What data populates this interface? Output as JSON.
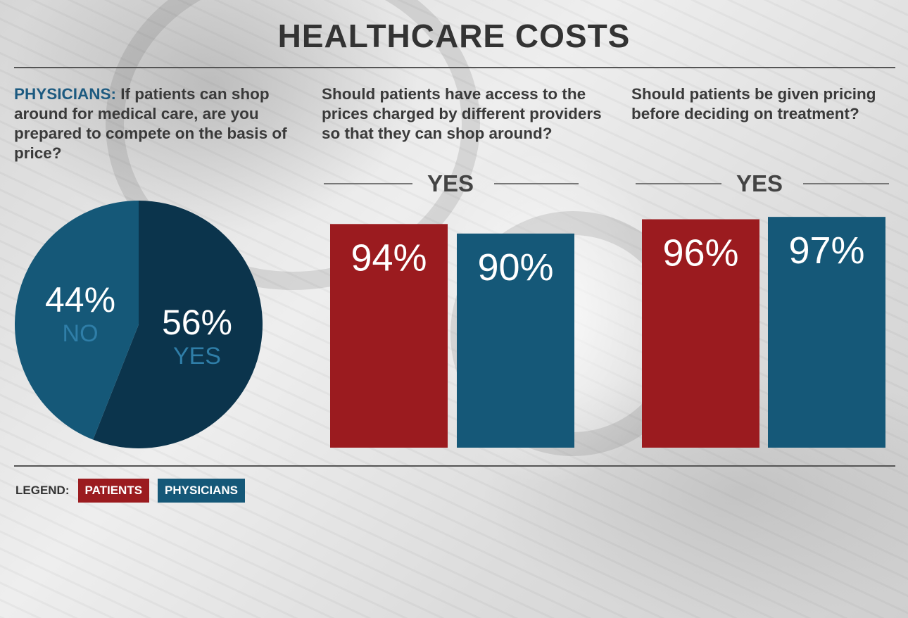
{
  "title": "HEALTHCARE COSTS",
  "colors": {
    "patients": "#9b1b1f",
    "physicians": "#155878",
    "pie_yes": "#0b344c",
    "pie_no": "#155878",
    "pie_cat_text": "#2f7ea8"
  },
  "questions": [
    {
      "lead": "PHYSICIANS:",
      "text": " If patients can shop around for medical care, are you prepared to compete on the basis of price?"
    },
    {
      "lead": "",
      "text": "Should patients have access to the prices charged by different providers so that they can shop around?"
    },
    {
      "lead": "",
      "text": "Should patients be given pricing before deciding on treatment?"
    }
  ],
  "yes_headers": [
    "YES",
    "YES"
  ],
  "legend": {
    "label": "LEGEND:",
    "items": [
      {
        "label": "PATIENTS",
        "color_key": "patients"
      },
      {
        "label": "PHYSICIANS",
        "color_key": "physicians"
      }
    ]
  },
  "chart_data": [
    {
      "type": "pie",
      "slices": [
        {
          "label": "YES",
          "value": 56,
          "display": "56%"
        },
        {
          "label": "NO",
          "value": 44,
          "display": "44%"
        }
      ]
    },
    {
      "type": "bar",
      "header": "YES",
      "series": [
        {
          "name": "PATIENTS",
          "value": 94,
          "display": "94%"
        },
        {
          "name": "PHYSICIANS",
          "value": 90,
          "display": "90%"
        }
      ],
      "ylim": [
        0,
        100
      ]
    },
    {
      "type": "bar",
      "header": "YES",
      "series": [
        {
          "name": "PATIENTS",
          "value": 96,
          "display": "96%"
        },
        {
          "name": "PHYSICIANS",
          "value": 97,
          "display": "97%"
        }
      ],
      "ylim": [
        0,
        100
      ]
    }
  ]
}
